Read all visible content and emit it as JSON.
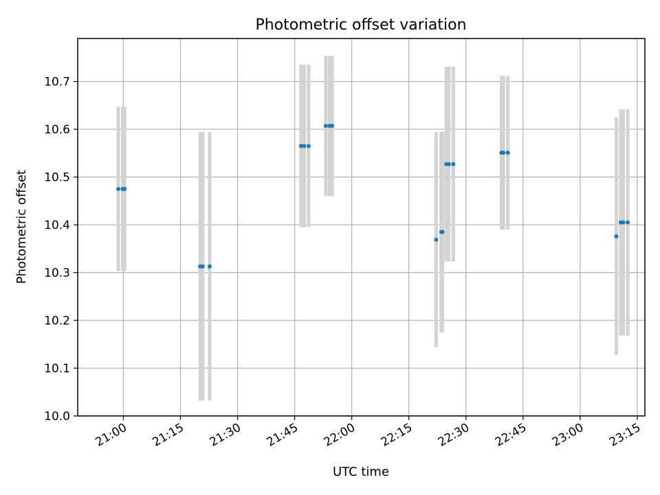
{
  "chart_data": {
    "type": "scatter",
    "title": "Photometric offset variation",
    "xlabel": "UTC time",
    "ylabel": "Photometric offset",
    "xlim": [
      "20:48",
      "23:17"
    ],
    "ylim": [
      10.0,
      10.79
    ],
    "x_ticks": [
      "21:00",
      "21:15",
      "21:30",
      "21:45",
      "22:00",
      "22:15",
      "22:30",
      "22:45",
      "23:00",
      "23:15"
    ],
    "y_ticks": [
      "10.0",
      "10.1",
      "10.2",
      "10.3",
      "10.4",
      "10.5",
      "10.6",
      "10.7"
    ],
    "grid": true,
    "error_bars": true,
    "colors": {
      "points": "#1f77b4",
      "error_bars": "#d3d3d3",
      "grid": "#b0b0b0"
    },
    "points": [
      {
        "x": "20:58:40",
        "y": 10.475,
        "err": 0.172
      },
      {
        "x": "20:59:50",
        "y": 10.475,
        "err": 0.172
      },
      {
        "x": "21:00:20",
        "y": 10.475,
        "err": 0.172
      },
      {
        "x": "21:20:10",
        "y": 10.313,
        "err": 0.281
      },
      {
        "x": "21:20:50",
        "y": 10.313,
        "err": 0.281
      },
      {
        "x": "21:22:40",
        "y": 10.313,
        "err": 0.281
      },
      {
        "x": "21:46:40",
        "y": 10.565,
        "err": 0.17
      },
      {
        "x": "21:47:30",
        "y": 10.565,
        "err": 0.17
      },
      {
        "x": "21:48:40",
        "y": 10.565,
        "err": 0.17
      },
      {
        "x": "21:53:10",
        "y": 10.607,
        "err": 0.147
      },
      {
        "x": "21:54:10",
        "y": 10.607,
        "err": 0.147
      },
      {
        "x": "21:54:50",
        "y": 10.607,
        "err": 0.147
      },
      {
        "x": "22:22:10",
        "y": 10.369,
        "err": 0.225
      },
      {
        "x": "22:23:30",
        "y": 10.385,
        "err": 0.21
      },
      {
        "x": "22:23:50",
        "y": 10.385,
        "err": 0.21
      },
      {
        "x": "22:24:50",
        "y": 10.527,
        "err": 0.204
      },
      {
        "x": "22:25:30",
        "y": 10.527,
        "err": 0.204
      },
      {
        "x": "22:26:40",
        "y": 10.527,
        "err": 0.204
      },
      {
        "x": "22:39:20",
        "y": 10.551,
        "err": 0.161
      },
      {
        "x": "22:39:50",
        "y": 10.551,
        "err": 0.161
      },
      {
        "x": "22:41:00",
        "y": 10.551,
        "err": 0.161
      },
      {
        "x": "23:09:30",
        "y": 10.376,
        "err": 0.249
      },
      {
        "x": "23:10:40",
        "y": 10.405,
        "err": 0.237
      },
      {
        "x": "23:11:20",
        "y": 10.405,
        "err": 0.237
      },
      {
        "x": "23:12:30",
        "y": 10.405,
        "err": 0.237
      }
    ]
  }
}
